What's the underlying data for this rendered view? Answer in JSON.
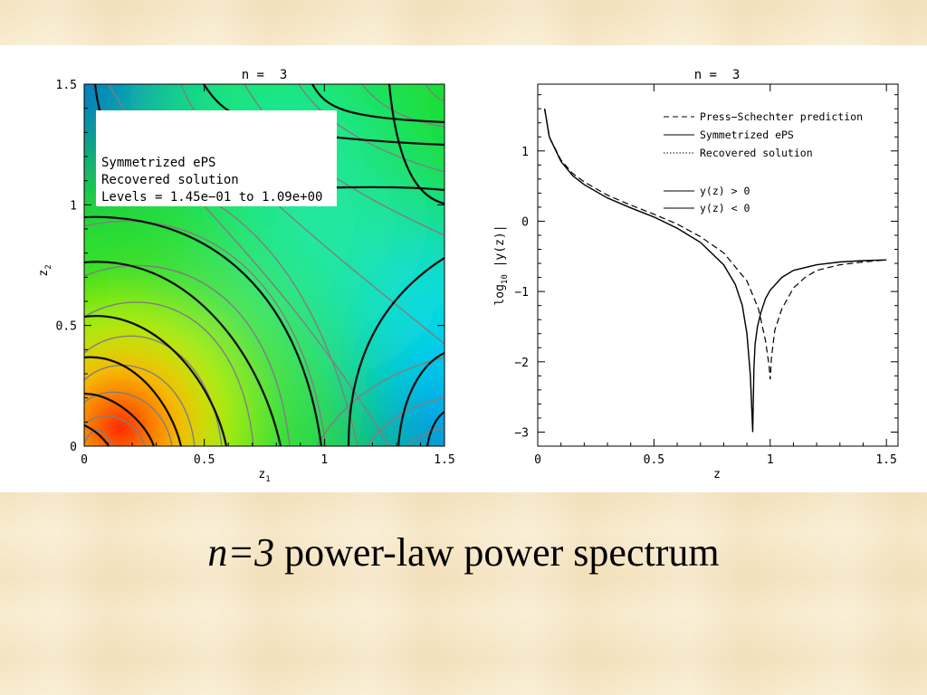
{
  "caption": {
    "italic": "n=3",
    "rest": " power-law power spectrum"
  },
  "chart_data": [
    {
      "type": "heatmap",
      "title": "n =  3",
      "xlabel": "z",
      "xlabel_sub": "1",
      "ylabel": "z",
      "ylabel_sub": "2",
      "xlim": [
        0,
        1.5
      ],
      "ylim": [
        0,
        1.5
      ],
      "xticks": [
        "0",
        "0.5",
        "1",
        "1.5"
      ],
      "yticks": [
        "0",
        "0.5",
        "1",
        "1.5"
      ],
      "legend": {
        "placement": "top-left",
        "entries": [
          "Symmetrized ePS",
          "Recovered solution",
          "Levels = 1.45e−01 to 1.09e+00"
        ]
      },
      "colormap": [
        "#ff2a00",
        "#ffd800",
        "#c8f000",
        "#00e000",
        "#00e8e0",
        "#0090ff",
        "#0040f0"
      ],
      "levels_range": [
        0.145,
        1.09
      ]
    },
    {
      "type": "line",
      "title": "n =  3",
      "xlabel": "z",
      "ylabel": "log",
      "ylabel_sub": "10",
      "ylabel_rest": " |y(z)|",
      "xlim": [
        0,
        1.55
      ],
      "ylim": [
        -3.2,
        1.95
      ],
      "xticks": [
        "0",
        "0.5",
        "1",
        "1.5"
      ],
      "yticks": [
        "1",
        "0",
        "−1",
        "−2",
        "−3"
      ],
      "legend": {
        "placement": "top-right",
        "entries": [
          "Press−Schechter prediction",
          "Symmetrized ePS",
          "Recovered solution",
          "y(z) > 0",
          "y(z) < 0"
        ]
      },
      "series": [
        {
          "name": "Press−Schechter prediction",
          "style": "dashed",
          "x": [
            0.03,
            0.05,
            0.1,
            0.15,
            0.2,
            0.3,
            0.4,
            0.5,
            0.6,
            0.7,
            0.8,
            0.9,
            0.95,
            0.98,
            0.995,
            1.0,
            1.005,
            1.02,
            1.05,
            1.1,
            1.15,
            1.2,
            1.3,
            1.4,
            1.5
          ],
          "y": [
            1.6,
            1.2,
            0.87,
            0.68,
            0.56,
            0.37,
            0.23,
            0.1,
            -0.04,
            -0.22,
            -0.45,
            -0.85,
            -1.25,
            -1.7,
            -2.05,
            -2.25,
            -1.95,
            -1.55,
            -1.25,
            -0.95,
            -0.8,
            -0.7,
            -0.62,
            -0.58,
            -0.55
          ]
        },
        {
          "name": "Symmetrized ePS",
          "style": "solid",
          "x": [
            0.03,
            0.05,
            0.1,
            0.15,
            0.2,
            0.3,
            0.4,
            0.5,
            0.6,
            0.7,
            0.8,
            0.85,
            0.88,
            0.9,
            0.915,
            0.925,
            0.93,
            0.935,
            0.945,
            0.96,
            0.98,
            1.0,
            1.05,
            1.1,
            1.2,
            1.3,
            1.4,
            1.5
          ],
          "y": [
            1.6,
            1.2,
            0.85,
            0.65,
            0.52,
            0.33,
            0.19,
            0.06,
            -0.1,
            -0.3,
            -0.62,
            -0.9,
            -1.2,
            -1.6,
            -2.2,
            -3.0,
            -2.1,
            -1.75,
            -1.5,
            -1.3,
            -1.1,
            -0.98,
            -0.8,
            -0.7,
            -0.62,
            -0.58,
            -0.56,
            -0.55
          ]
        },
        {
          "name": "Recovered solution",
          "style": "dotted",
          "x": [
            0.03,
            0.05,
            0.1,
            0.15,
            0.2,
            0.3,
            0.4,
            0.5,
            0.6,
            0.7,
            0.8,
            0.85,
            0.88,
            0.9,
            0.915,
            0.925
          ],
          "y": [
            1.58,
            1.19,
            0.85,
            0.65,
            0.52,
            0.33,
            0.19,
            0.06,
            -0.1,
            -0.3,
            -0.62,
            -0.9,
            -1.2,
            -1.6,
            -2.2,
            -2.9
          ]
        }
      ]
    }
  ]
}
